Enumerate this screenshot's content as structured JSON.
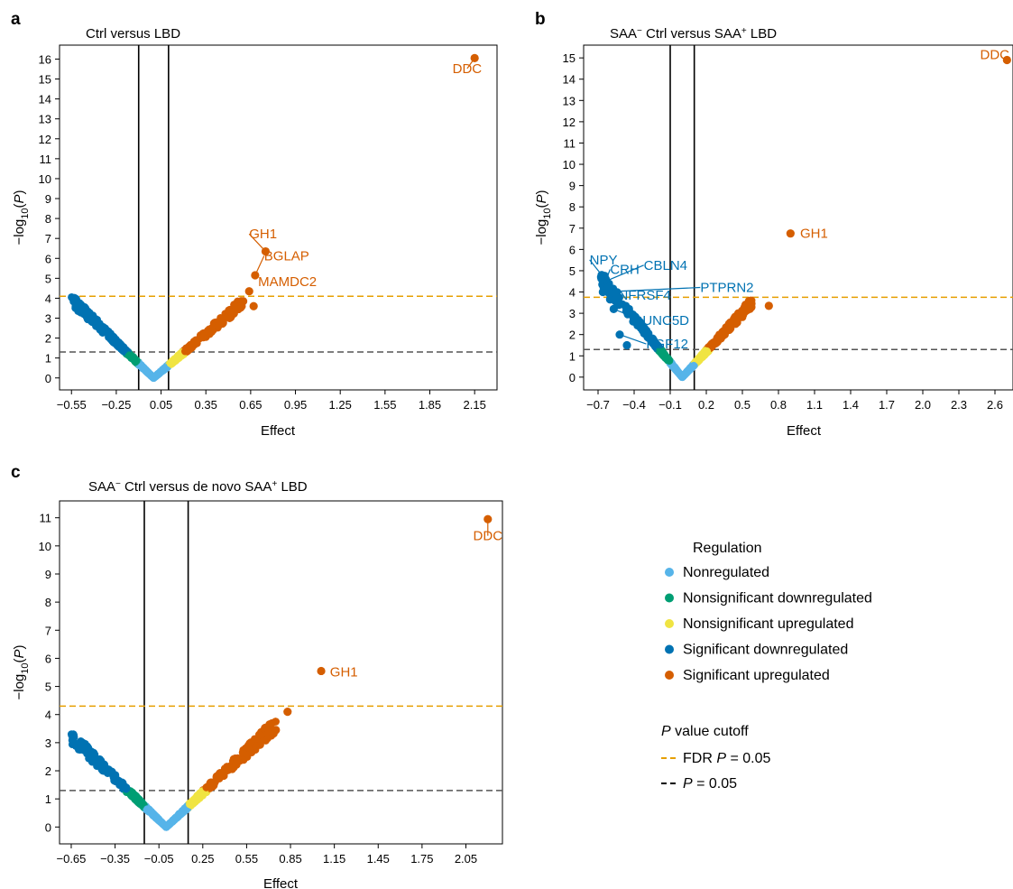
{
  "colors": {
    "nonregulated": "#56B4E9",
    "nonsig_down": "#009E73",
    "nonsig_up": "#F0E442",
    "sig_down": "#0072B2",
    "sig_up": "#D55E00",
    "fdr_line": "#E69F00",
    "p_line": "#555555",
    "axis": "#000000"
  },
  "legend": {
    "regulation_title": "Regulation",
    "items": [
      {
        "label": "Nonregulated",
        "color_key": "nonregulated"
      },
      {
        "label": "Nonsignificant downregulated",
        "color_key": "nonsig_down"
      },
      {
        "label": "Nonsignificant upregulated",
        "color_key": "nonsig_up"
      },
      {
        "label": "Significant downregulated",
        "color_key": "sig_down"
      },
      {
        "label": "Significant upregulated",
        "color_key": "sig_up"
      }
    ],
    "cutoff_title_italic": "P",
    "cutoff_title_rest": " value cutoff",
    "fdr_pre": "FDR ",
    "fdr_italic": "P",
    "fdr_post": " = 0.05",
    "p_italic": "P",
    "p_post": " = 0.05"
  },
  "chart_data": [
    {
      "panel_letter": "a",
      "type": "scatter",
      "title": "Ctrl versus LBD",
      "title_parts": [
        [
          "Ctrl versus LBD",
          ""
        ]
      ],
      "xlabel": "Effect",
      "ylabel": "−log10(P)",
      "xlim": [
        -0.63,
        2.3
      ],
      "ylim": [
        -0.6,
        16.7
      ],
      "xticks": [
        -0.55,
        -0.25,
        0.05,
        0.35,
        0.65,
        0.95,
        1.25,
        1.55,
        1.85,
        2.15
      ],
      "xtick_labels": [
        "−0.55",
        "−0.25",
        "0.05",
        "0.35",
        "0.65",
        "0.95",
        "1.25",
        "1.55",
        "1.85",
        "2.15"
      ],
      "yticks": [
        0,
        1,
        2,
        3,
        4,
        5,
        6,
        7,
        8,
        9,
        10,
        11,
        12,
        13,
        14,
        15,
        16
      ],
      "vlines": [
        -0.1,
        0.1
      ],
      "fdr_y": 4.1,
      "p_y": 1.3,
      "cloud": {
        "min_x": -0.55,
        "max_neg_y": 4.05,
        "max_x": 0.6,
        "max_pos_y": 3.9
      },
      "extra_points": [
        {
          "x": 2.15,
          "y": 16.05,
          "group": "sig_up"
        },
        {
          "x": 0.75,
          "y": 6.35,
          "group": "sig_up"
        },
        {
          "x": 0.68,
          "y": 5.15,
          "group": "sig_up"
        },
        {
          "x": 0.64,
          "y": 4.35,
          "group": "sig_up"
        },
        {
          "x": 0.67,
          "y": 3.6,
          "group": "sig_up"
        },
        {
          "x": 0.6,
          "y": 3.85,
          "group": "sig_up"
        }
      ],
      "labels": [
        {
          "text": "DDC",
          "x": 2.15,
          "y": 16.05,
          "group": "sig_up",
          "tx": 2.1,
          "ty": 15.3,
          "anchor": "middle"
        },
        {
          "text": "GH1",
          "x": 0.75,
          "y": 6.35,
          "group": "sig_up",
          "tx": 0.64,
          "ty": 7.0,
          "anchor": "start"
        },
        {
          "text": "BGLAP",
          "x": 0.68,
          "y": 5.15,
          "group": "sig_up",
          "tx": 0.74,
          "ty": 5.9,
          "anchor": "start"
        },
        {
          "text": "MAMDC2",
          "x": 0.64,
          "y": 4.35,
          "group": "sig_up",
          "tx": 0.7,
          "ty": 4.6,
          "anchor": "start"
        }
      ]
    },
    {
      "panel_letter": "b",
      "type": "scatter",
      "title": "SAA⁻ Ctrl versus SAA⁺ LBD",
      "title_parts": [
        [
          "SAA",
          ""
        ],
        [
          "−",
          "sup"
        ],
        [
          " Ctrl versus SAA",
          ""
        ],
        [
          "+",
          "sup"
        ],
        [
          " LBD",
          ""
        ]
      ],
      "xlabel": "Effect",
      "ylabel": "−log10(P)",
      "xlim": [
        -0.82,
        2.75
      ],
      "ylim": [
        -0.6,
        15.6
      ],
      "xticks": [
        -0.7,
        -0.4,
        -0.1,
        0.2,
        0.5,
        0.8,
        1.1,
        1.4,
        1.7,
        2.0,
        2.3,
        2.6
      ],
      "xtick_labels": [
        "−0.7",
        "−0.4",
        "−0.1",
        "0.2",
        "0.5",
        "0.8",
        "1.1",
        "1.4",
        "1.7",
        "2.0",
        "2.3",
        "2.6"
      ],
      "yticks": [
        0,
        1,
        2,
        3,
        4,
        5,
        6,
        7,
        8,
        9,
        10,
        11,
        12,
        13,
        14,
        15
      ],
      "vlines": [
        -0.1,
        0.1
      ],
      "fdr_y": 3.75,
      "p_y": 1.3,
      "cloud": {
        "min_x": -0.68,
        "max_neg_y": 4.8,
        "max_x": 0.58,
        "max_pos_y": 3.6
      },
      "extra_points": [
        {
          "x": 2.7,
          "y": 14.9,
          "group": "sig_up"
        },
        {
          "x": 0.9,
          "y": 6.75,
          "group": "sig_up"
        },
        {
          "x": 0.72,
          "y": 3.35,
          "group": "sig_up"
        },
        {
          "x": -0.67,
          "y": 4.8,
          "group": "sig_down"
        },
        {
          "x": -0.66,
          "y": 4.45,
          "group": "sig_down"
        },
        {
          "x": -0.655,
          "y": 4.25,
          "group": "sig_down"
        },
        {
          "x": -0.66,
          "y": 4.0,
          "group": "sig_down"
        },
        {
          "x": -0.6,
          "y": 3.65,
          "group": "sig_down"
        },
        {
          "x": -0.57,
          "y": 3.2,
          "group": "sig_down"
        },
        {
          "x": -0.52,
          "y": 2.0,
          "group": "sig_down"
        },
        {
          "x": -0.46,
          "y": 1.5,
          "group": "sig_down"
        }
      ],
      "labels": [
        {
          "text": "DDC",
          "x": 2.7,
          "y": 14.9,
          "group": "sig_up",
          "tx": 2.72,
          "ty": 14.95,
          "anchor": "end"
        },
        {
          "text": "GH1",
          "x": 0.9,
          "y": 6.75,
          "group": "sig_up",
          "tx": 0.98,
          "ty": 6.55,
          "anchor": "start"
        },
        {
          "text": "NPY",
          "x": -0.67,
          "y": 4.8,
          "group": "sig_down",
          "tx": -0.77,
          "ty": 5.3,
          "anchor": "start"
        },
        {
          "text": "CBLN4",
          "x": -0.66,
          "y": 4.45,
          "group": "sig_down",
          "tx": -0.32,
          "ty": 5.05,
          "anchor": "start"
        },
        {
          "text": "CRH",
          "x": -0.655,
          "y": 4.25,
          "group": "sig_down",
          "tx": -0.6,
          "ty": 4.85,
          "anchor": "start"
        },
        {
          "text": "PTPRN2",
          "x": -0.66,
          "y": 4.0,
          "group": "sig_down",
          "tx": 0.15,
          "ty": 4.0,
          "anchor": "start"
        },
        {
          "text": "TNFRSF4",
          "x": -0.6,
          "y": 3.65,
          "group": "sig_down",
          "tx": -0.6,
          "ty": 3.65,
          "anchor": "start",
          "noline": true
        },
        {
          "text": "UNC5D",
          "x": -0.57,
          "y": 3.2,
          "group": "sig_down",
          "tx": -0.33,
          "ty": 2.45,
          "anchor": "start"
        },
        {
          "text": "FGF12",
          "x": -0.52,
          "y": 2.0,
          "group": "sig_down",
          "tx": -0.3,
          "ty": 1.35,
          "anchor": "start"
        }
      ]
    },
    {
      "panel_letter": "c",
      "type": "scatter",
      "title": "SAA⁻ Ctrl versus de novo SAA⁺ LBD",
      "title_parts": [
        [
          "SAA",
          ""
        ],
        [
          "−",
          "sup"
        ],
        [
          " Ctrl versus de novo SAA",
          ""
        ],
        [
          "+",
          "sup"
        ],
        [
          " LBD",
          ""
        ]
      ],
      "xlabel": "Effect",
      "ylabel": "−log10(P)",
      "xlim": [
        -0.73,
        2.3
      ],
      "ylim": [
        -0.6,
        11.6
      ],
      "xticks": [
        -0.65,
        -0.35,
        -0.05,
        0.25,
        0.55,
        0.85,
        1.15,
        1.45,
        1.75,
        2.05
      ],
      "xtick_labels": [
        "−0.65",
        "−0.35",
        "−0.05",
        "0.25",
        "0.55",
        "0.85",
        "1.15",
        "1.45",
        "1.75",
        "2.05"
      ],
      "yticks": [
        0,
        1,
        2,
        3,
        4,
        5,
        6,
        7,
        8,
        9,
        10,
        11
      ],
      "vlines": [
        -0.15,
        0.15
      ],
      "fdr_y": 4.3,
      "p_y": 1.3,
      "cloud": {
        "min_x": -0.65,
        "max_neg_y": 3.3,
        "max_x": 0.75,
        "max_pos_y": 3.75
      },
      "extra_points": [
        {
          "x": 2.2,
          "y": 10.95,
          "group": "sig_up"
        },
        {
          "x": 1.06,
          "y": 5.55,
          "group": "sig_up"
        },
        {
          "x": 0.83,
          "y": 4.1,
          "group": "sig_up"
        },
        {
          "x": 0.75,
          "y": 3.45,
          "group": "sig_up"
        }
      ],
      "labels": [
        {
          "text": "DDC",
          "x": 2.2,
          "y": 10.95,
          "group": "sig_up",
          "tx": 2.2,
          "ty": 10.2,
          "anchor": "middle"
        },
        {
          "text": "GH1",
          "x": 1.06,
          "y": 5.55,
          "group": "sig_up",
          "tx": 1.12,
          "ty": 5.35,
          "anchor": "start"
        }
      ]
    }
  ]
}
